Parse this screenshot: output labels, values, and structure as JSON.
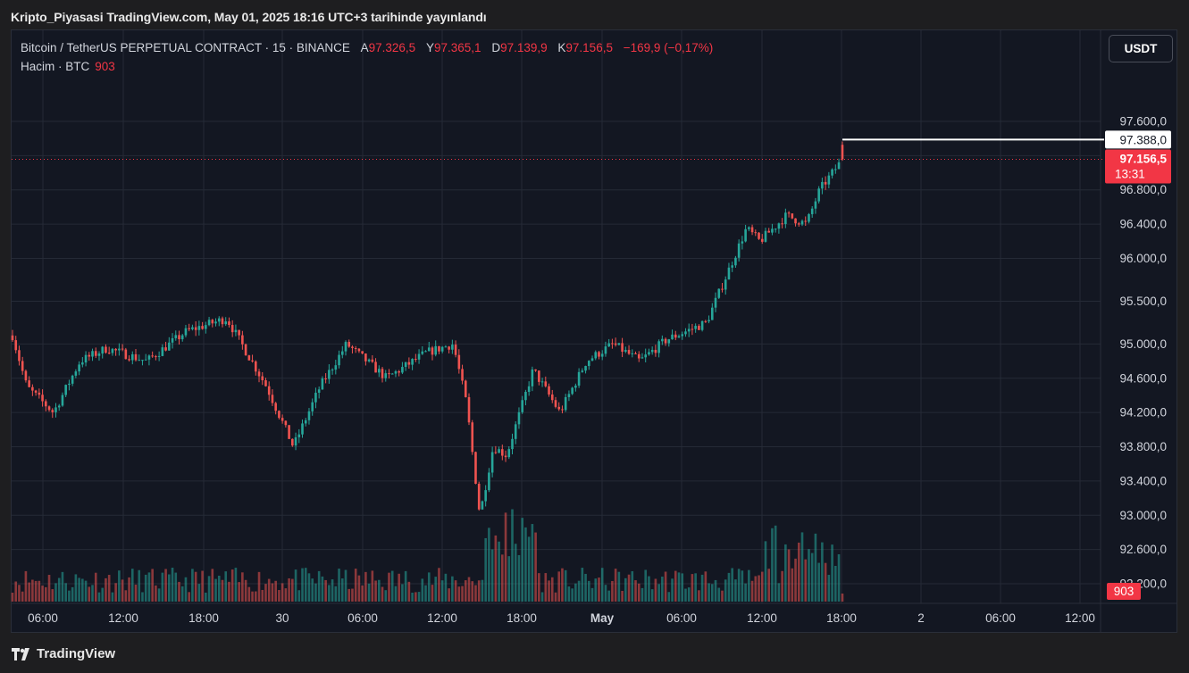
{
  "header": {
    "title": "Kripto_Piyasasi TradingView.com, May 01, 2025 18:16 UTC+3 tarihinde yayınlandı"
  },
  "symbol": {
    "name": "Bitcoin / TetherUS PERPETUAL CONTRACT · 15 · BINANCE",
    "open_label": "A",
    "open": "97.326,5",
    "high_label": "Y",
    "high": "97.365,1",
    "low_label": "D",
    "low": "97.139,9",
    "close_label": "K",
    "close": "97.156,5",
    "change": "−169,9 (−0,17%)"
  },
  "volume_legend": {
    "label": "Hacim · BTC",
    "value": "903"
  },
  "currency_button": "USDT",
  "price_axis": {
    "ticks": [
      "97.600,0",
      "97.200,0",
      "96.800,0",
      "96.400,0",
      "96.000,0",
      "95.500,0",
      "95.000,0",
      "94.600,0",
      "94.200,0",
      "93.800,0",
      "93.400,0",
      "93.000,0",
      "92.600,0",
      "92.200,0"
    ],
    "high_marker": "97.388,0",
    "last_price": "97.156,5",
    "countdown": "13:31",
    "volume_badge": "903"
  },
  "time_axis": {
    "ticks": [
      "06:00",
      "12:00",
      "18:00",
      "30",
      "06:00",
      "12:00",
      "18:00",
      "May",
      "06:00",
      "12:00",
      "18:00",
      "2",
      "06:00",
      "12:00"
    ]
  },
  "colors": {
    "up": "#26a69a",
    "down": "#ef5350",
    "background": "#131722",
    "grid": "#252a36",
    "last_price": "#f23645"
  },
  "footer": {
    "brand": "TradingView",
    "logo_icon": "tradingview-logo-icon"
  },
  "chart_data": {
    "type": "candlestick",
    "interval": "15m",
    "ylim": [
      92200,
      97800
    ],
    "close_path": {
      "x": [
        "Apr 29 03:00",
        "Apr 29 06:00",
        "Apr 29 08:00",
        "Apr 29 10:00",
        "Apr 29 12:00",
        "Apr 29 15:00",
        "Apr 29 18:00",
        "Apr 29 21:00",
        "Apr 30 00:00",
        "Apr 30 02:00",
        "Apr 30 04:00",
        "Apr 30 06:00",
        "Apr 30 09:00",
        "Apr 30 12:00",
        "Apr 30 14:00",
        "Apr 30 15:00",
        "Apr 30 16:00",
        "Apr 30 17:00",
        "Apr 30 18:00",
        "Apr 30 20:00",
        "Apr 30 22:00",
        "May 01 00:00",
        "May 01 02:00",
        "May 01 04:00",
        "May 01 06:00",
        "May 01 09:00",
        "May 01 12:00",
        "May 01 13:00",
        "May 01 15:00",
        "May 01 16:30",
        "May 01 17:30",
        "May 01 18:00"
      ],
      "y": [
        95100,
        94500,
        94200,
        94800,
        94950,
        94800,
        95150,
        95300,
        94500,
        93800,
        94500,
        95000,
        94600,
        94900,
        95000,
        94300,
        93000,
        93800,
        93700,
        94700,
        94200,
        94800,
        95000,
        94800,
        95050,
        95250,
        96350,
        96200,
        96500,
        96400,
        96800,
        97156.5
      ]
    },
    "last": {
      "open": 97326.5,
      "high": 97365.1,
      "low": 97139.9,
      "close": 97156.5
    },
    "high_marker": 97388.0,
    "volume_last": 903
  }
}
